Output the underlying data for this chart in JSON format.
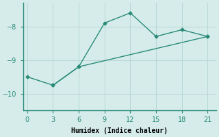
{
  "line1_x": [
    0,
    3,
    6,
    9,
    12,
    15,
    18,
    21
  ],
  "line1_y": [
    -9.5,
    -9.75,
    -9.2,
    -7.9,
    -7.6,
    -8.3,
    -8.1,
    -8.3
  ],
  "line2_x": [
    3,
    6,
    21
  ],
  "line2_y": [
    -9.75,
    -9.2,
    -8.3
  ],
  "line_color": "#2a8b78",
  "marker": "D",
  "markersize": 2.5,
  "linewidth": 1.0,
  "background_color": "#d5ecea",
  "xlabel": "Humidex (Indice chaleur)",
  "xlabel_fontsize": 7,
  "xlim": [
    -0.5,
    22
  ],
  "ylim": [
    -10.5,
    -7.3
  ],
  "xticks": [
    0,
    3,
    6,
    9,
    12,
    15,
    18,
    21
  ],
  "yticks": [
    -10,
    -9,
    -8
  ],
  "grid_color": "#b8d8d5",
  "tick_fontsize": 7
}
